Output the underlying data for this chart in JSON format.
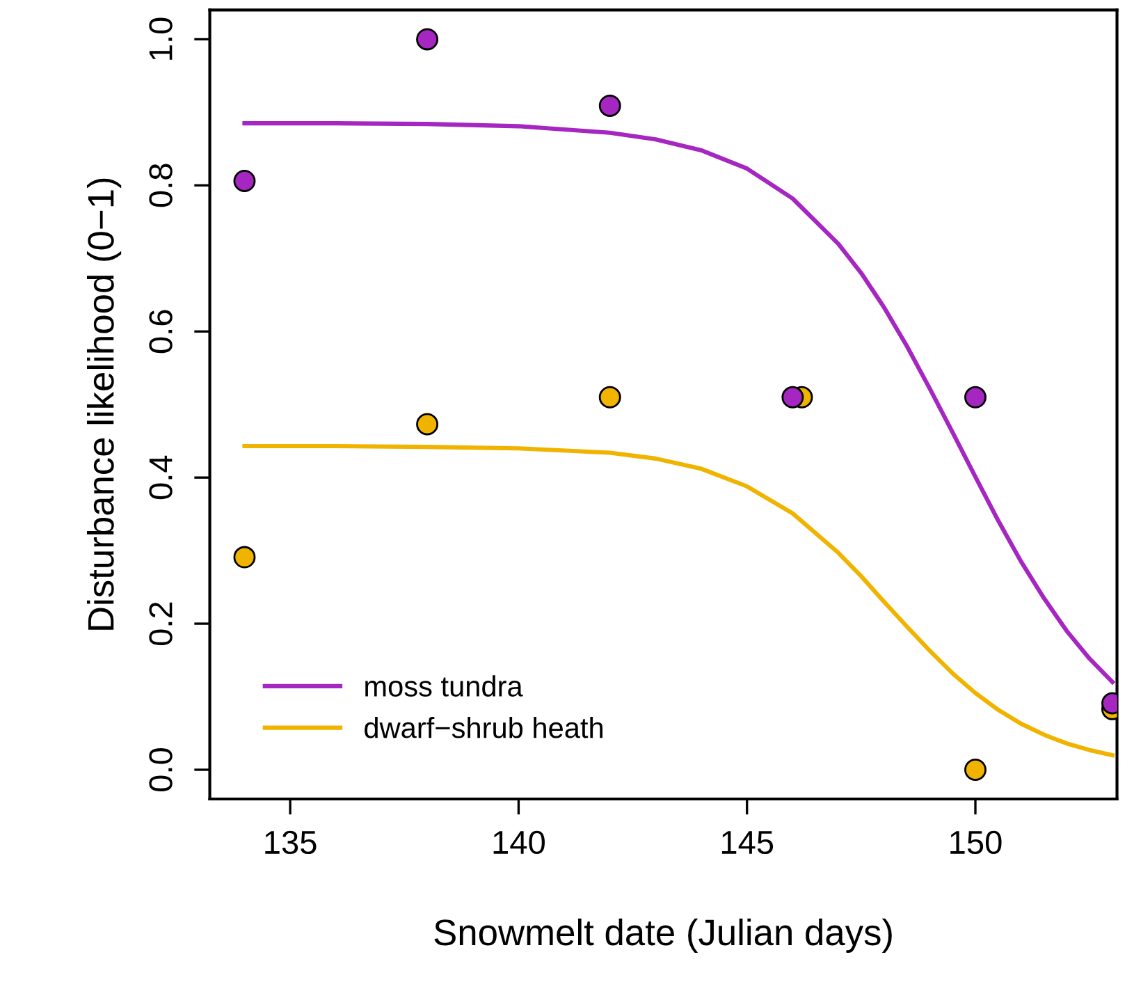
{
  "chart_data": {
    "type": "scatter",
    "xlabel": "Snowmelt date (Julian days)",
    "ylabel": "Disturbance likelihood (0−1)",
    "xlim": [
      133.24,
      153.1
    ],
    "ylim": [
      -0.04,
      1.04
    ],
    "xticks": [
      135,
      140,
      145,
      150
    ],
    "yticks": [
      {
        "value": 0,
        "label": "0.0"
      },
      0.2,
      0.4,
      0.6,
      0.8,
      {
        "value": 1,
        "label": "1.0"
      }
    ],
    "grid": false,
    "legend": "bottom left",
    "series": [
      {
        "marker": "circle",
        "color": "#a526c0",
        "x": [
          134,
          138,
          142,
          146,
          150,
          153
        ],
        "values": [
          0.806,
          1.0,
          0.909,
          0.51,
          0.51,
          0.091
        ]
      },
      {
        "marker": "circle",
        "color": "#f0b400",
        "x": [
          134,
          138,
          142,
          146.2,
          150,
          153
        ],
        "values": [
          0.291,
          0.473,
          0.51,
          0.51,
          0.0,
          0.083
        ]
      },
      {
        "type": "line",
        "name": "moss tundra",
        "color": "#a526c0",
        "x": [
          134,
          136,
          138,
          140,
          142,
          143,
          144,
          145,
          146,
          147,
          147.5,
          148,
          148.5,
          149,
          149.5,
          150,
          150.5,
          151,
          151.5,
          152,
          152.5,
          153
        ],
        "values": [
          0.885,
          0.885,
          0.884,
          0.881,
          0.872,
          0.863,
          0.848,
          0.823,
          0.782,
          0.72,
          0.68,
          0.633,
          0.58,
          0.522,
          0.462,
          0.401,
          0.341,
          0.285,
          0.235,
          0.19,
          0.152,
          0.12
        ]
      },
      {
        "type": "line",
        "name": "dwarf−shrub heath",
        "color": "#f0b400",
        "x": [
          134,
          136,
          138,
          140,
          142,
          143,
          144,
          145,
          146,
          147,
          147.5,
          148,
          148.5,
          149,
          149.5,
          150,
          150.5,
          151,
          151.5,
          152,
          152.5,
          153
        ],
        "values": [
          0.443,
          0.443,
          0.442,
          0.44,
          0.434,
          0.426,
          0.412,
          0.388,
          0.351,
          0.297,
          0.265,
          0.23,
          0.196,
          0.163,
          0.132,
          0.105,
          0.082,
          0.063,
          0.048,
          0.036,
          0.027,
          0.02
        ]
      }
    ]
  }
}
